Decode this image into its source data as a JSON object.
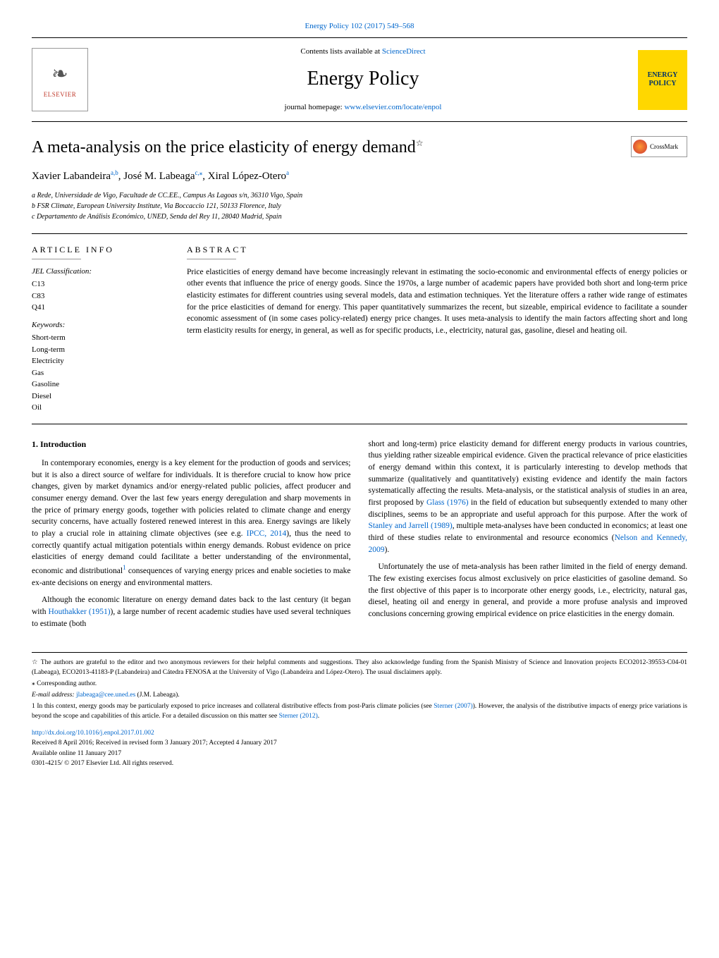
{
  "top_link": {
    "journal_ref": "Energy Policy 102 (2017) 549–568"
  },
  "header": {
    "contents_prefix": "Contents lists available at ",
    "contents_link": "ScienceDirect",
    "journal_title": "Energy Policy",
    "homepage_prefix": "journal homepage: ",
    "homepage_link": "www.elsevier.com/locate/enpol",
    "elsevier_label": "ELSEVIER",
    "energy_policy_badge": "ENERGY POLICY"
  },
  "crossmark": {
    "label": "CrossMark"
  },
  "title": "A meta-analysis on the price elasticity of energy demand",
  "title_star": "☆",
  "authors_html": "Xavier Labandeira",
  "author_parts": {
    "a1": "Xavier Labandeira",
    "a1_sup": "a,b",
    "a2": ", José M. Labeaga",
    "a2_sup": "c,",
    "a2_star": "⁎",
    "a3": ", Xiral López-Otero",
    "a3_sup": "a"
  },
  "affiliations": {
    "a": "a Rede, Universidade de Vigo, Facultade de CC.EE., Campus As Lagoas s/n, 36310 Vigo, Spain",
    "b": "b FSR Climate, European University Institute, Via Boccaccio 121, 50133 Florence, Italy",
    "c": "c Departamento de Análisis Económico, UNED, Senda del Rey 11, 28040 Madrid, Spain"
  },
  "article_info": {
    "heading": "ARTICLE INFO",
    "jel_label": "JEL Classification:",
    "jel": [
      "C13",
      "C83",
      "Q41"
    ],
    "kw_label": "Keywords:",
    "keywords": [
      "Short-term",
      "Long-term",
      "Electricity",
      "Gas",
      "Gasoline",
      "Diesel",
      "Oil"
    ]
  },
  "abstract": {
    "heading": "ABSTRACT",
    "text": "Price elasticities of energy demand have become increasingly relevant in estimating the socio-economic and environmental effects of energy policies or other events that influence the price of energy goods. Since the 1970s, a large number of academic papers have provided both short and long-term price elasticity estimates for different countries using several models, data and estimation techniques. Yet the literature offers a rather wide range of estimates for the price elasticities of demand for energy. This paper quantitatively summarizes the recent, but sizeable, empirical evidence to facilitate a sounder economic assessment of (in some cases policy-related) energy price changes. It uses meta-analysis to identify the main factors affecting short and long term elasticity results for energy, in general, as well as for specific products, i.e., electricity, natural gas, gasoline, diesel and heating oil."
  },
  "intro": {
    "heading": "1. Introduction",
    "p1a": "In contemporary economies, energy is a key element for the production of goods and services; but it is also a direct source of welfare for individuals. It is therefore crucial to know how price changes, given by market dynamics and/or energy-related public policies, affect producer and consumer energy demand. Over the last few years energy deregulation and sharp movements in the price of primary energy goods, together with policies related to climate change and energy security concerns, have actually fostered renewed interest in this area. Energy savings are likely to play a crucial role in attaining climate objectives (see e.g. ",
    "p1_link1": "IPCC, 2014",
    "p1b": "), thus the need to correctly quantify actual mitigation potentials within energy demands. Robust evidence on price elasticities of energy demand could facilitate a better understanding of the environmental, economic and distributional",
    "p1_fn": "1",
    "p1c": " consequences of varying energy prices and enable societies to make ex-ante decisions on energy and environmental matters.",
    "p2a": "Although the economic literature on energy demand dates back to the last century (it began with ",
    "p2_link1": "Houthakker (1951)",
    "p2b": "), a large number of recent academic studies have used several techniques to estimate (both",
    "p3a": "short and long-term) price elasticity demand for different energy products in various countries, thus yielding rather sizeable empirical evidence. Given the practical relevance of price elasticities of energy demand within this context, it is particularly interesting to develop methods that summarize (qualitatively and quantitatively) existing evidence and identify the main factors systematically affecting the results. Meta-analysis, or the statistical analysis of studies in an area, first proposed by ",
    "p3_link1": "Glass (1976)",
    "p3b": " in the field of education but subsequently extended to many other disciplines, seems to be an appropriate and useful approach for this purpose. After the work of ",
    "p3_link2": "Stanley and Jarrell (1989)",
    "p3c": ", multiple meta-analyses have been conducted in economics; at least one third of these studies relate to environmental and resource economics (",
    "p3_link3": "Nelson and Kennedy, 2009",
    "p3d": ").",
    "p4": "Unfortunately the use of meta-analysis has been rather limited in the field of energy demand. The few existing exercises focus almost exclusively on price elasticities of gasoline demand. So the first objective of this paper is to incorporate other energy goods, i.e., electricity, natural gas, diesel, heating oil and energy in general, and provide a more profuse analysis and improved conclusions concerning growing empirical evidence on price elasticities in the energy domain."
  },
  "footnotes": {
    "star": "☆ The authors are grateful to the editor and two anonymous reviewers for their helpful comments and suggestions. They also acknowledge funding from the Spanish Ministry of Science and Innovation projects ECO2012-39553-C04-01 (Labeaga), ECO2013-41183-P (Labandeira) and Cátedra FENOSA at the University of Vigo (Labandeira and López-Otero). The usual disclaimers apply.",
    "corr_mark": "⁎",
    "corr": " Corresponding author.",
    "email_label": "E-mail address: ",
    "email": "jlabeaga@cee.uned.es",
    "email_suffix": " (J.M. Labeaga).",
    "fn1a": "1 In this context, energy goods may be particularly exposed to price increases and collateral distributive effects from post-Paris climate policies (see ",
    "fn1_link1": "Sterner (2007)",
    "fn1b": "). However, the analysis of the distributive impacts of energy price variations is beyond the scope and capabilities of this article. For a detailed discussion on this matter see ",
    "fn1_link2": "Sterner (2012)",
    "fn1c": "."
  },
  "footer": {
    "doi": "http://dx.doi.org/10.1016/j.enpol.2017.01.002",
    "received": "Received 8 April 2016; Received in revised form 3 January 2017; Accepted 4 January 2017",
    "available": "Available online 11 January 2017",
    "issn": "0301-4215/ © 2017 Elsevier Ltd. All rights reserved."
  },
  "colors": {
    "link": "#0066cc",
    "badge_bg": "#ffd700",
    "badge_text": "#003366",
    "elsevier_red": "#c0392b"
  }
}
